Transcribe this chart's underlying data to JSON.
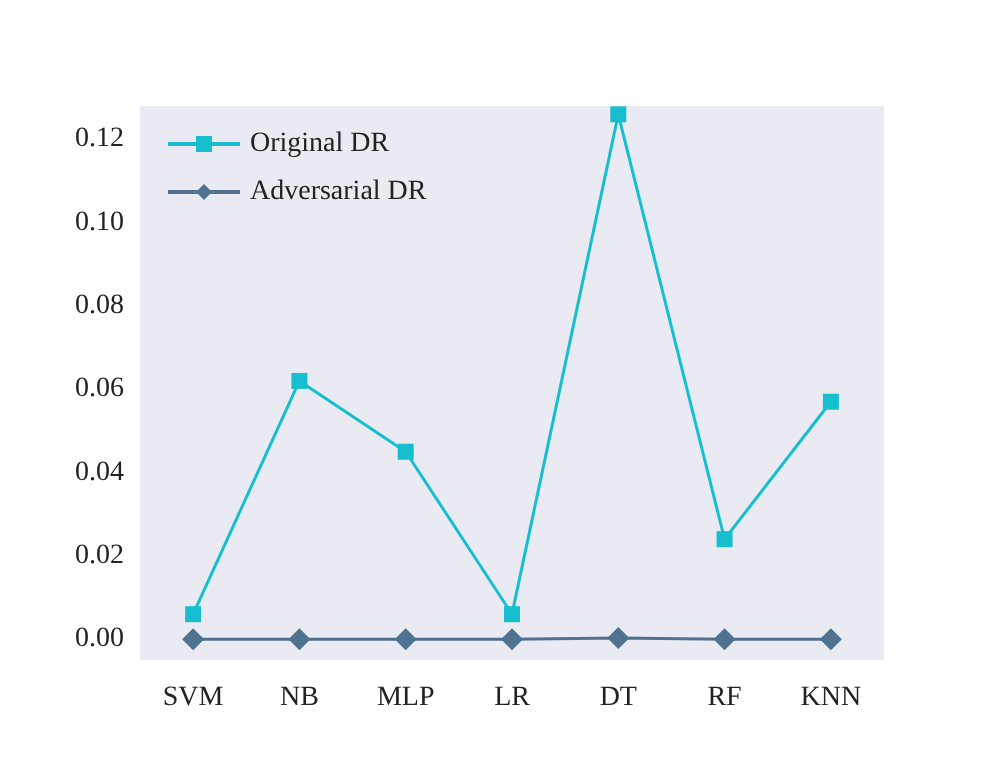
{
  "chart_data": {
    "type": "line",
    "categories": [
      "SVM",
      "NB",
      "MLP",
      "LR",
      "DT",
      "RF",
      "KNN"
    ],
    "series": [
      {
        "name": "Original DR",
        "color": "#17becf",
        "marker": "square",
        "values": [
          0.006,
          0.062,
          0.045,
          0.006,
          0.126,
          0.024,
          0.057
        ]
      },
      {
        "name": "Adversarial DR",
        "color": "#4f7290",
        "marker": "diamond",
        "values": [
          0,
          0,
          0,
          0,
          0.0003,
          0,
          0
        ]
      }
    ],
    "ylim": [
      -0.005,
      0.128
    ],
    "yticks": [
      {
        "value": 0,
        "label": "0.00"
      },
      {
        "value": 0.02,
        "label": "0.02"
      },
      {
        "value": 0.04,
        "label": "0.04"
      },
      {
        "value": 0.06,
        "label": "0.06"
      },
      {
        "value": 0.08,
        "label": "0.08"
      },
      {
        "value": 0.1,
        "label": "0.10"
      },
      {
        "value": 0.12,
        "label": "0.12"
      }
    ],
    "legend": "top left"
  }
}
